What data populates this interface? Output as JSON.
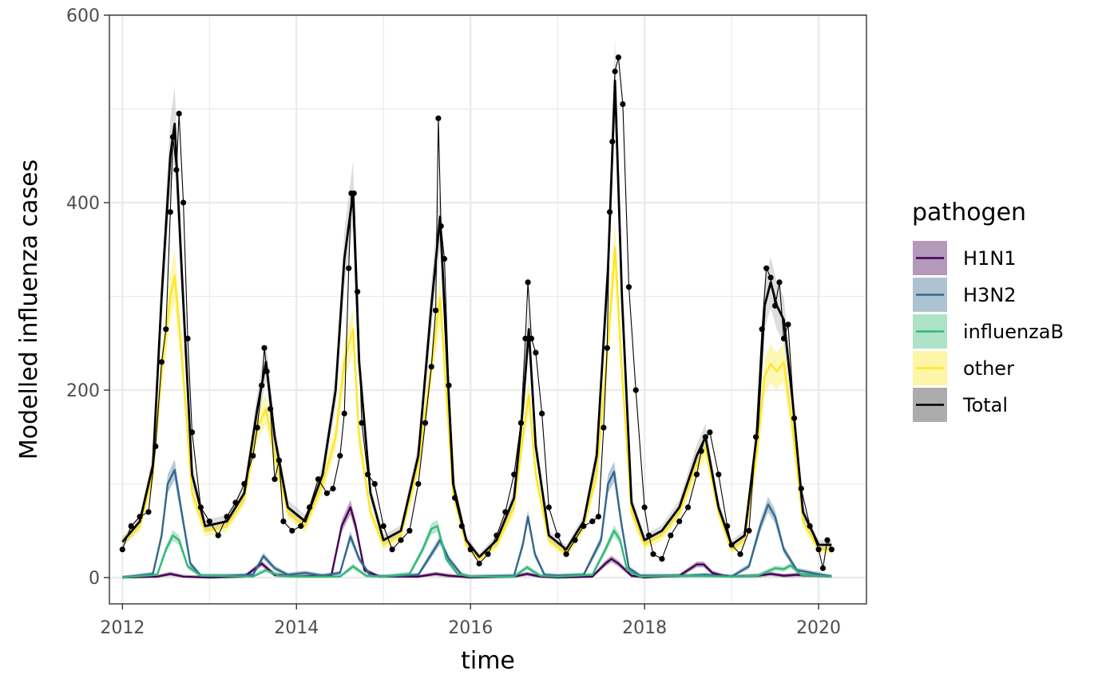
{
  "chart_data": {
    "type": "line",
    "xlabel": "time",
    "ylabel": "Modelled influenza cases",
    "xlim": [
      2011.85,
      2020.55
    ],
    "ylim": [
      -28,
      600
    ],
    "x_ticks": [
      2012,
      2014,
      2016,
      2018,
      2020
    ],
    "x_tick_labels": [
      "2012",
      "2014",
      "2016",
      "2018",
      "2020"
    ],
    "y_ticks": [
      0,
      200,
      400,
      600
    ],
    "y_tick_labels": [
      "0",
      "200",
      "400",
      "600"
    ],
    "y_minor_ticks": [
      100,
      300,
      500
    ],
    "x_minor_ticks": [
      2013,
      2015,
      2017,
      2019
    ],
    "grid": true,
    "legend": {
      "title": "pathogen",
      "position": "right",
      "entries": [
        "H1N1",
        "H3N2",
        "influenzaB",
        "other",
        "Total"
      ]
    },
    "colors": {
      "H1N1": "#440154",
      "H3N2": "#31688e",
      "influenzaB": "#35b779",
      "other": "#fde725",
      "Total": "#000000"
    },
    "series": [
      {
        "name": "H1N1",
        "x": [
          2012.0,
          2012.4,
          2012.55,
          2012.7,
          2013.0,
          2013.4,
          2013.6,
          2013.75,
          2014.0,
          2014.4,
          2014.52,
          2014.62,
          2014.68,
          2014.78,
          2014.95,
          2015.4,
          2015.6,
          2015.75,
          2016.0,
          2016.5,
          2016.65,
          2016.8,
          2017.0,
          2017.4,
          2017.55,
          2017.62,
          2017.7,
          2017.85,
          2018.0,
          2018.4,
          2018.6,
          2018.68,
          2018.78,
          2018.9,
          2019.0,
          2019.3,
          2019.45,
          2019.6,
          2019.75,
          2020.15
        ],
        "y": [
          0,
          1,
          4,
          1,
          0,
          1,
          15,
          3,
          1,
          2,
          55,
          75,
          55,
          8,
          1,
          1,
          4,
          2,
          0,
          1,
          4,
          1,
          0,
          1,
          15,
          20,
          15,
          2,
          0,
          2,
          14,
          14,
          5,
          2,
          1,
          2,
          4,
          2,
          3,
          1
        ]
      },
      {
        "name": "H3N2",
        "x": [
          2012.0,
          2012.35,
          2012.45,
          2012.52,
          2012.6,
          2012.68,
          2012.78,
          2012.9,
          2013.2,
          2013.5,
          2013.62,
          2013.75,
          2013.9,
          2014.1,
          2014.3,
          2014.5,
          2014.62,
          2014.72,
          2014.85,
          2015.0,
          2015.4,
          2015.55,
          2015.65,
          2015.75,
          2015.9,
          2016.0,
          2016.5,
          2016.6,
          2016.66,
          2016.74,
          2016.85,
          2017.0,
          2017.3,
          2017.5,
          2017.58,
          2017.65,
          2017.73,
          2017.82,
          2017.95,
          2018.5,
          2018.7,
          2019.0,
          2019.2,
          2019.33,
          2019.42,
          2019.5,
          2019.6,
          2019.75,
          2020.15
        ],
        "y": [
          0,
          4,
          45,
          100,
          115,
          70,
          15,
          2,
          2,
          3,
          23,
          10,
          3,
          5,
          2,
          5,
          44,
          20,
          2,
          1,
          3,
          25,
          40,
          20,
          3,
          1,
          2,
          35,
          65,
          25,
          3,
          2,
          3,
          40,
          100,
          113,
          60,
          10,
          2,
          2,
          3,
          1,
          12,
          55,
          78,
          65,
          30,
          8,
          1
        ]
      },
      {
        "name": "influenzaB",
        "x": [
          2012.0,
          2012.4,
          2012.5,
          2012.58,
          2012.65,
          2012.75,
          2012.9,
          2013.5,
          2013.65,
          2013.8,
          2014.0,
          2014.5,
          2014.65,
          2014.8,
          2015.0,
          2015.3,
          2015.45,
          2015.55,
          2015.62,
          2015.72,
          2015.85,
          2016.0,
          2016.5,
          2016.65,
          2016.8,
          2017.0,
          2017.4,
          2017.55,
          2017.65,
          2017.72,
          2017.8,
          2017.95,
          2018.5,
          2019.0,
          2019.3,
          2019.4,
          2019.5,
          2019.6,
          2019.68,
          2019.8,
          2020.15
        ],
        "y": [
          0,
          3,
          30,
          45,
          40,
          12,
          2,
          1,
          8,
          2,
          1,
          1,
          12,
          2,
          1,
          4,
          30,
          52,
          55,
          20,
          4,
          1,
          1,
          11,
          2,
          1,
          3,
          30,
          50,
          40,
          8,
          1,
          2,
          1,
          2,
          6,
          10,
          9,
          13,
          3,
          1
        ]
      },
      {
        "name": "other",
        "x": [
          2012.0,
          2012.2,
          2012.35,
          2012.45,
          2012.55,
          2012.6,
          2012.68,
          2012.8,
          2012.95,
          2013.2,
          2013.4,
          2013.55,
          2013.65,
          2013.75,
          2013.9,
          2014.1,
          2014.3,
          2014.45,
          2014.55,
          2014.65,
          2014.72,
          2014.85,
          2015.0,
          2015.2,
          2015.4,
          2015.55,
          2015.65,
          2015.72,
          2015.8,
          2015.95,
          2016.1,
          2016.3,
          2016.5,
          2016.6,
          2016.67,
          2016.75,
          2016.9,
          2017.1,
          2017.3,
          2017.45,
          2017.58,
          2017.66,
          2017.74,
          2017.85,
          2018.0,
          2018.2,
          2018.4,
          2018.6,
          2018.7,
          2018.85,
          2019.0,
          2019.15,
          2019.3,
          2019.38,
          2019.45,
          2019.52,
          2019.6,
          2019.7,
          2019.82,
          2020.0,
          2020.15
        ],
        "y": [
          38,
          55,
          110,
          220,
          300,
          322,
          240,
          90,
          50,
          55,
          85,
          160,
          180,
          130,
          70,
          55,
          100,
          150,
          230,
          265,
          150,
          70,
          35,
          45,
          120,
          225,
          298,
          200,
          90,
          35,
          20,
          35,
          75,
          150,
          195,
          110,
          40,
          25,
          55,
          110,
          250,
          352,
          220,
          70,
          35,
          45,
          70,
          120,
          140,
          70,
          30,
          40,
          140,
          215,
          228,
          220,
          230,
          160,
          60,
          30,
          30
        ]
      },
      {
        "name": "Total",
        "x": [
          2012.0,
          2012.2,
          2012.35,
          2012.45,
          2012.55,
          2012.6,
          2012.68,
          2012.8,
          2012.95,
          2013.2,
          2013.4,
          2013.55,
          2013.65,
          2013.75,
          2013.9,
          2014.1,
          2014.3,
          2014.45,
          2014.55,
          2014.65,
          2014.72,
          2014.85,
          2015.0,
          2015.2,
          2015.4,
          2015.55,
          2015.65,
          2015.72,
          2015.8,
          2015.95,
          2016.1,
          2016.3,
          2016.5,
          2016.6,
          2016.67,
          2016.75,
          2016.9,
          2017.1,
          2017.3,
          2017.45,
          2017.58,
          2017.66,
          2017.74,
          2017.85,
          2018.0,
          2018.2,
          2018.4,
          2018.6,
          2018.7,
          2018.85,
          2019.0,
          2019.15,
          2019.3,
          2019.38,
          2019.45,
          2019.52,
          2019.6,
          2019.7,
          2019.82,
          2020.0,
          2020.15
        ],
        "y": [
          38,
          60,
          120,
          300,
          450,
          484,
          330,
          110,
          55,
          60,
          90,
          180,
          230,
          150,
          75,
          60,
          110,
          200,
          340,
          410,
          230,
          90,
          40,
          50,
          130,
          290,
          385,
          250,
          100,
          40,
          22,
          40,
          85,
          180,
          265,
          140,
          45,
          30,
          60,
          130,
          330,
          530,
          300,
          80,
          40,
          50,
          75,
          130,
          150,
          75,
          35,
          45,
          160,
          290,
          315,
          290,
          275,
          190,
          70,
          35,
          35
        ]
      },
      {
        "name": "observed",
        "x": [
          2012.0,
          2012.1,
          2012.2,
          2012.3,
          2012.38,
          2012.45,
          2012.5,
          2012.55,
          2012.58,
          2012.62,
          2012.65,
          2012.7,
          2012.75,
          2012.8,
          2012.9,
          2013.0,
          2013.1,
          2013.2,
          2013.3,
          2013.4,
          2013.5,
          2013.55,
          2013.6,
          2013.63,
          2013.66,
          2013.7,
          2013.75,
          2013.8,
          2013.85,
          2013.95,
          2014.05,
          2014.15,
          2014.25,
          2014.35,
          2014.42,
          2014.5,
          2014.55,
          2014.6,
          2014.63,
          2014.66,
          2014.7,
          2014.75,
          2014.82,
          2014.9,
          2015.0,
          2015.1,
          2015.2,
          2015.3,
          2015.4,
          2015.48,
          2015.55,
          2015.6,
          2015.63,
          2015.66,
          2015.7,
          2015.75,
          2015.82,
          2015.9,
          2016.0,
          2016.1,
          2016.2,
          2016.3,
          2016.4,
          2016.5,
          2016.58,
          2016.63,
          2016.66,
          2016.7,
          2016.75,
          2016.82,
          2016.9,
          2017.0,
          2017.1,
          2017.2,
          2017.3,
          2017.4,
          2017.47,
          2017.53,
          2017.57,
          2017.6,
          2017.63,
          2017.66,
          2017.7,
          2017.75,
          2017.82,
          2017.9,
          2018.0,
          2018.05,
          2018.1,
          2018.2,
          2018.3,
          2018.4,
          2018.5,
          2018.6,
          2018.65,
          2018.7,
          2018.75,
          2018.85,
          2018.95,
          2019.0,
          2019.1,
          2019.2,
          2019.28,
          2019.35,
          2019.4,
          2019.45,
          2019.5,
          2019.55,
          2019.6,
          2019.65,
          2019.72,
          2019.8,
          2019.9,
          2020.0,
          2020.05,
          2020.1,
          2020.15
        ],
        "y": [
          30,
          55,
          65,
          70,
          140,
          230,
          265,
          390,
          470,
          435,
          495,
          400,
          255,
          155,
          75,
          60,
          45,
          65,
          80,
          100,
          130,
          160,
          205,
          245,
          220,
          180,
          105,
          125,
          60,
          50,
          55,
          75,
          105,
          90,
          95,
          130,
          175,
          330,
          410,
          410,
          305,
          165,
          110,
          100,
          55,
          30,
          40,
          50,
          100,
          165,
          225,
          285,
          490,
          375,
          340,
          205,
          85,
          55,
          30,
          15,
          25,
          45,
          70,
          110,
          165,
          255,
          315,
          255,
          240,
          175,
          75,
          45,
          25,
          40,
          55,
          60,
          65,
          160,
          245,
          390,
          465,
          540,
          555,
          505,
          310,
          200,
          75,
          45,
          25,
          20,
          45,
          60,
          75,
          110,
          135,
          150,
          155,
          110,
          55,
          35,
          25,
          50,
          150,
          265,
          330,
          320,
          290,
          315,
          255,
          270,
          170,
          95,
          55,
          30,
          10,
          40,
          30
        ]
      }
    ]
  }
}
